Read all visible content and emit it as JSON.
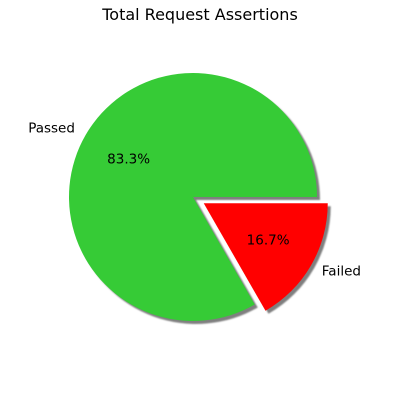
{
  "chart_data": {
    "type": "pie",
    "title": "Total Request Assertions",
    "slices": [
      {
        "label": "Passed",
        "value": 83.3,
        "pct_label": "83.3%",
        "color": "#36cb36",
        "exploded": false
      },
      {
        "label": "Failed",
        "value": 16.7,
        "pct_label": "16.7%",
        "color": "#ff0000",
        "exploded": true
      }
    ],
    "shadow": true,
    "legend": "none"
  }
}
